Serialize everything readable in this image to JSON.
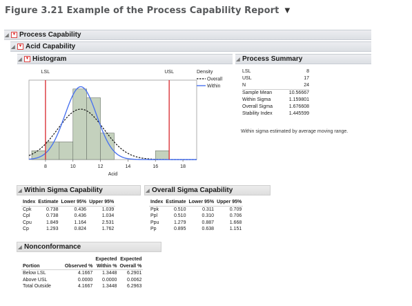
{
  "figure": {
    "title": "Figure 3.21 Example of the Process Capability Report"
  },
  "outline": {
    "process_capability": "Process Capability",
    "acid_capability": "Acid Capability",
    "histogram": "Histogram",
    "process_summary": "Process Summary",
    "within_sigma": "Within Sigma Capability",
    "overall_sigma": "Overall Sigma Capability",
    "nonconformance": "Nonconformance"
  },
  "chart_data": {
    "type": "bar",
    "xlabel": "Acid",
    "ylabel": "",
    "xlim": [
      6.8,
      19
    ],
    "ylim": [
      0,
      9
    ],
    "x_ticks": [
      "8",
      "10",
      "12",
      "14",
      "16",
      "18"
    ],
    "bins": [
      {
        "x0": 7,
        "x1": 8,
        "count": 1
      },
      {
        "x0": 8,
        "x1": 9,
        "count": 2
      },
      {
        "x0": 9,
        "x1": 10,
        "count": 2
      },
      {
        "x0": 10,
        "x1": 11,
        "count": 8
      },
      {
        "x0": 11,
        "x1": 12,
        "count": 7
      },
      {
        "x0": 12,
        "x1": 13,
        "count": 3
      },
      {
        "x0": 16,
        "x1": 17,
        "count": 1
      }
    ],
    "spec_limits": [
      {
        "label": "LSL",
        "value": 8
      },
      {
        "label": "USL",
        "value": 17
      }
    ],
    "legend": {
      "title": "Density",
      "entries": [
        "Overall",
        "Within"
      ]
    },
    "density": {
      "mean": 10.56667,
      "within_sigma": 1.159801,
      "overall_sigma": 1.676608,
      "n": 24,
      "bin_width": 1
    },
    "colors": {
      "bar_fill": "#c4d1bd",
      "bar_stroke": "#6b746a",
      "spec": "#d9252b",
      "within": "#4a73ef",
      "overall": "#111111"
    }
  },
  "process_summary": [
    {
      "label": "LSL",
      "value": "8"
    },
    {
      "label": "USL",
      "value": "17"
    },
    {
      "label": "N",
      "value": "24"
    },
    {
      "label": "Sample Mean",
      "value": "10.56667"
    },
    {
      "label": "Within Sigma",
      "value": "1.159801"
    },
    {
      "label": "Overall Sigma",
      "value": "1.676608"
    },
    {
      "label": "Stability Index",
      "value": "1.445599"
    }
  ],
  "summary_note": "Within sigma estimated by average moving range.",
  "within_table": {
    "headers": [
      "Index",
      "Estimate",
      "Lower 95%",
      "Upper 95%"
    ],
    "rows": [
      [
        "Cpk",
        "0.738",
        "0.436",
        "1.039"
      ],
      [
        "Cpl",
        "0.738",
        "0.436",
        "1.034"
      ],
      [
        "Cpu",
        "1.849",
        "1.164",
        "2.531"
      ],
      [
        "Cp",
        "1.293",
        "0.824",
        "1.762"
      ]
    ]
  },
  "overall_table": {
    "headers": [
      "Index",
      "Estimate",
      "Lower 95%",
      "Upper 95%"
    ],
    "rows": [
      [
        "Ppk",
        "0.510",
        "0.311",
        "0.709"
      ],
      [
        "Ppl",
        "0.510",
        "0.310",
        "0.706"
      ],
      [
        "Ppu",
        "1.279",
        "0.887",
        "1.668"
      ],
      [
        "Pp",
        "0.895",
        "0.638",
        "1.151"
      ]
    ]
  },
  "nonconformance": {
    "headers": [
      {
        "line1": "",
        "line2": "Portion"
      },
      {
        "line1": "",
        "line2": "Observed %"
      },
      {
        "line1": "Expected",
        "line2": "Within %"
      },
      {
        "line1": "Expected",
        "line2": "Overall %"
      }
    ],
    "rows": [
      [
        "Below LSL",
        "4.1667",
        "1.3448",
        "6.2901"
      ],
      [
        "Above USL",
        "0.0000",
        "0.0000",
        "0.0062"
      ],
      [
        "Total Outside",
        "4.1667",
        "1.3448",
        "6.2963"
      ]
    ]
  }
}
